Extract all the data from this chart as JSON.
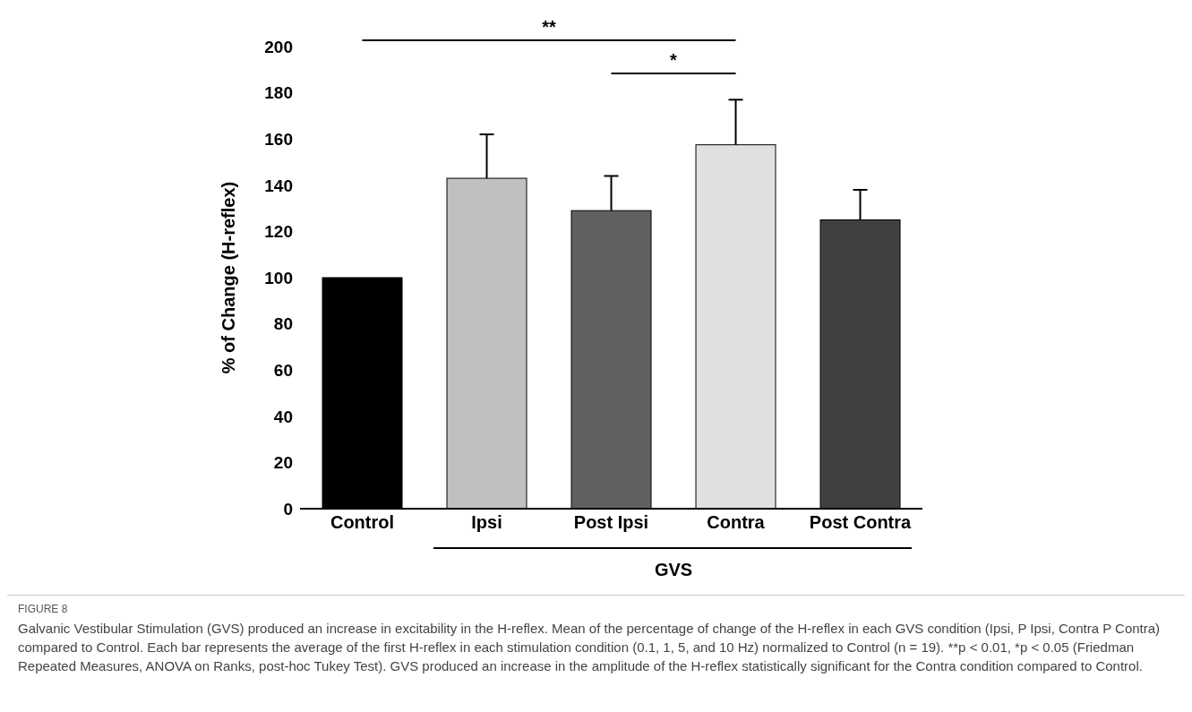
{
  "chart_data": {
    "type": "bar",
    "ylabel": "% of Change (H-reflex)",
    "categories": [
      "Control",
      "Ipsi",
      "Post Ipsi",
      "Contra",
      "Post Contra"
    ],
    "values": [
      100,
      143,
      129,
      157.5,
      125
    ],
    "colors": [
      "#000000",
      "#c0c0c0",
      "#606060",
      "#e0e0e0",
      "#404040"
    ],
    "errors": [
      null,
      [
        143,
        162
      ],
      [
        129,
        144
      ],
      [
        157.5,
        177
      ],
      [
        125,
        138
      ]
    ],
    "ylim": [
      0,
      200
    ],
    "yticks": [
      0,
      20,
      40,
      60,
      80,
      100,
      120,
      140,
      160,
      180,
      200
    ],
    "grid": false,
    "legend": false,
    "annotations": [
      "**",
      "*",
      "GVS",
      "FIGURE 8",
      "Galvanic Vestibular Stimulation (GVS) produced an increase in excitability in the H-reflex. Mean of the percentage of change of the H-reflex in each GVS condition (Ipsi, P Ipsi, Contra P Contra) compared to Control. Each bar represents the average of the first H-reflex in each stimulation condition (0.1, 1, 5, and 10 Hz) normalized to Control (n = 19). **p < 0.01, *p < 0.05 (Friedman Repeated Measures, ANOVA on Ranks, post-hoc Tukey Test). GVS produced an increase in the amplitude of the H-reflex statistically significant for the Contra condition compared to Control."
    ]
  }
}
